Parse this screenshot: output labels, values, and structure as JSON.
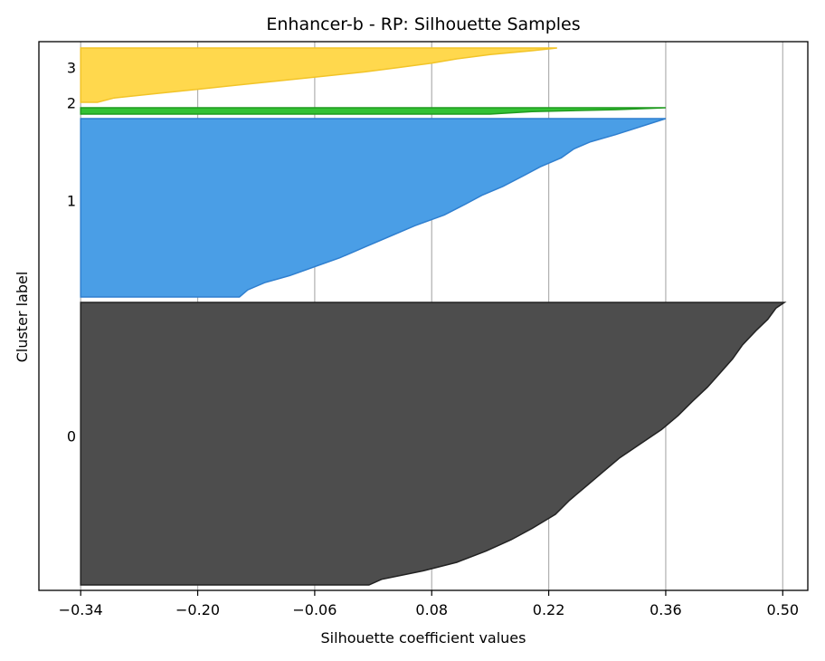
{
  "chart_data": {
    "type": "area",
    "title": "Enhancer-b - RP: Silhouette Samples",
    "xlabel": "Silhouette coefficient values",
    "ylabel": "Cluster label",
    "xlim": [
      -0.39,
      0.53
    ],
    "xticks": [
      -0.34,
      -0.2,
      -0.06,
      0.08,
      0.22,
      0.36,
      0.5
    ],
    "xtick_labels": [
      "−0.34",
      "−0.20",
      "−0.06",
      "0.08",
      "0.22",
      "0.36",
      "0.50"
    ],
    "grid": "vertical",
    "baseline": -0.34,
    "clusters": [
      {
        "label": "0",
        "color": "#4d4d4d",
        "edge_color": "#222222",
        "profile": [
          [
            0,
            0.502
          ],
          [
            0.02,
            0.492
          ],
          [
            0.06,
            0.482
          ],
          [
            0.1,
            0.468
          ],
          [
            0.15,
            0.452
          ],
          [
            0.2,
            0.44
          ],
          [
            0.25,
            0.425
          ],
          [
            0.3,
            0.41
          ],
          [
            0.35,
            0.392
          ],
          [
            0.4,
            0.375
          ],
          [
            0.45,
            0.355
          ],
          [
            0.5,
            0.33
          ],
          [
            0.55,
            0.305
          ],
          [
            0.6,
            0.285
          ],
          [
            0.65,
            0.265
          ],
          [
            0.7,
            0.245
          ],
          [
            0.75,
            0.228
          ],
          [
            0.8,
            0.2
          ],
          [
            0.84,
            0.175
          ],
          [
            0.88,
            0.145
          ],
          [
            0.92,
            0.11
          ],
          [
            0.95,
            0.07
          ],
          [
            0.98,
            0.02
          ],
          [
            1.0,
            0.005
          ]
        ]
      },
      {
        "label": "1",
        "color": "#4a9ee6",
        "edge_color": "#2f7fcf",
        "profile": [
          [
            0,
            0.36
          ],
          [
            0.03,
            0.34
          ],
          [
            0.06,
            0.32
          ],
          [
            0.09,
            0.3
          ],
          [
            0.13,
            0.27
          ],
          [
            0.17,
            0.25
          ],
          [
            0.22,
            0.235
          ],
          [
            0.27,
            0.21
          ],
          [
            0.32,
            0.19
          ],
          [
            0.38,
            0.165
          ],
          [
            0.43,
            0.14
          ],
          [
            0.48,
            0.12
          ],
          [
            0.54,
            0.095
          ],
          [
            0.6,
            0.06
          ],
          [
            0.66,
            0.03
          ],
          [
            0.72,
            0.0
          ],
          [
            0.78,
            -0.03
          ],
          [
            0.83,
            -0.06
          ],
          [
            0.88,
            -0.09
          ],
          [
            0.92,
            -0.12
          ],
          [
            0.96,
            -0.14
          ],
          [
            1.0,
            -0.15
          ]
        ]
      },
      {
        "label": "2",
        "color": "#33c233",
        "edge_color": "#1f9a1f",
        "profile": [
          [
            0,
            0.36
          ],
          [
            0.3,
            0.3
          ],
          [
            0.6,
            0.2
          ],
          [
            1.0,
            0.15
          ]
        ]
      },
      {
        "label": "3",
        "color": "#ffd84d",
        "edge_color": "#f2c428",
        "profile": [
          [
            0,
            0.23
          ],
          [
            0.05,
            0.2
          ],
          [
            0.12,
            0.15
          ],
          [
            0.2,
            0.11
          ],
          [
            0.28,
            0.08
          ],
          [
            0.36,
            0.04
          ],
          [
            0.44,
            0.0
          ],
          [
            0.52,
            -0.05
          ],
          [
            0.6,
            -0.1
          ],
          [
            0.68,
            -0.15
          ],
          [
            0.76,
            -0.2
          ],
          [
            0.84,
            -0.25
          ],
          [
            0.92,
            -0.3
          ],
          [
            1.0,
            -0.32
          ]
        ]
      }
    ]
  }
}
